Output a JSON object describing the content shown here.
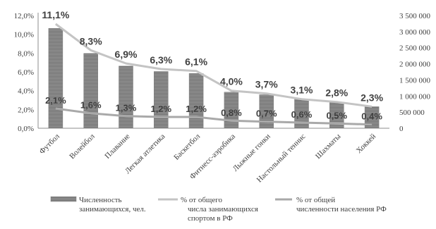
{
  "chart_data": {
    "type": "bar",
    "categories": [
      "Футбол",
      "Волейбол",
      "Плавание",
      "Легкая атлетика",
      "Баскетбол",
      "Фитнесс-аэробика",
      "Лыжные гонки",
      "Настольный теннис",
      "Шахматы",
      "Хоккей"
    ],
    "series": [
      {
        "name": "Численность занимающихся, чел.",
        "type": "bar",
        "axis": "right",
        "values": [
          3100000,
          2320000,
          1930000,
          1760000,
          1700000,
          1120000,
          1040000,
          900000,
          810000,
          670000
        ],
        "color": "#8c8c8c"
      },
      {
        "name": "% от общего числа занимающихся спортом в РФ",
        "type": "line",
        "axis": "left",
        "values": [
          11.1,
          8.3,
          6.9,
          6.3,
          6.1,
          4.0,
          3.7,
          3.1,
          2.8,
          2.3
        ],
        "labels": [
          "11,1%",
          "8,3%",
          "6,9%",
          "6,3%",
          "6,1%",
          "4,0%",
          "3,7%",
          "3,1%",
          "2,8%",
          "2,3%"
        ],
        "color": "#bdbdbd"
      },
      {
        "name": "% от общей численности населения РФ",
        "type": "line",
        "axis": "left",
        "values": [
          2.1,
          1.6,
          1.3,
          1.2,
          1.2,
          0.8,
          0.7,
          0.6,
          0.5,
          0.4
        ],
        "labels": [
          "2,1%",
          "1,6%",
          "1,3%",
          "1,2%",
          "1,2%",
          "0,8%",
          "0,7%",
          "0,6%",
          "0,5%",
          "0,4%"
        ],
        "color": "#a6a6a6"
      }
    ],
    "y_left": {
      "lim": [
        0,
        12
      ],
      "ticks": [
        0,
        2,
        4,
        6,
        8,
        10,
        12
      ],
      "tick_labels": [
        "0,0%",
        "2,0%",
        "4,0%",
        "6,0%",
        "8,0%",
        "10,0%",
        "12,0%"
      ]
    },
    "y_right": {
      "lim": [
        0,
        3500000
      ],
      "ticks": [
        0,
        500000,
        1000000,
        1500000,
        2000000,
        2500000,
        3000000,
        3500000
      ],
      "tick_labels": [
        "0",
        "500 000",
        "1 000 000",
        "1 500 000",
        "2 000 000",
        "2 500 000",
        "3 000 000",
        "3 500 000"
      ]
    },
    "grid": false,
    "legend": {
      "placement": "bottom",
      "entries": [
        [
          "Численность",
          "занимающихся, чел."
        ],
        [
          "% от общего",
          "числа занимающихся",
          "спортом в РФ"
        ],
        [
          "% от общей",
          "численности населения РФ"
        ]
      ]
    }
  }
}
